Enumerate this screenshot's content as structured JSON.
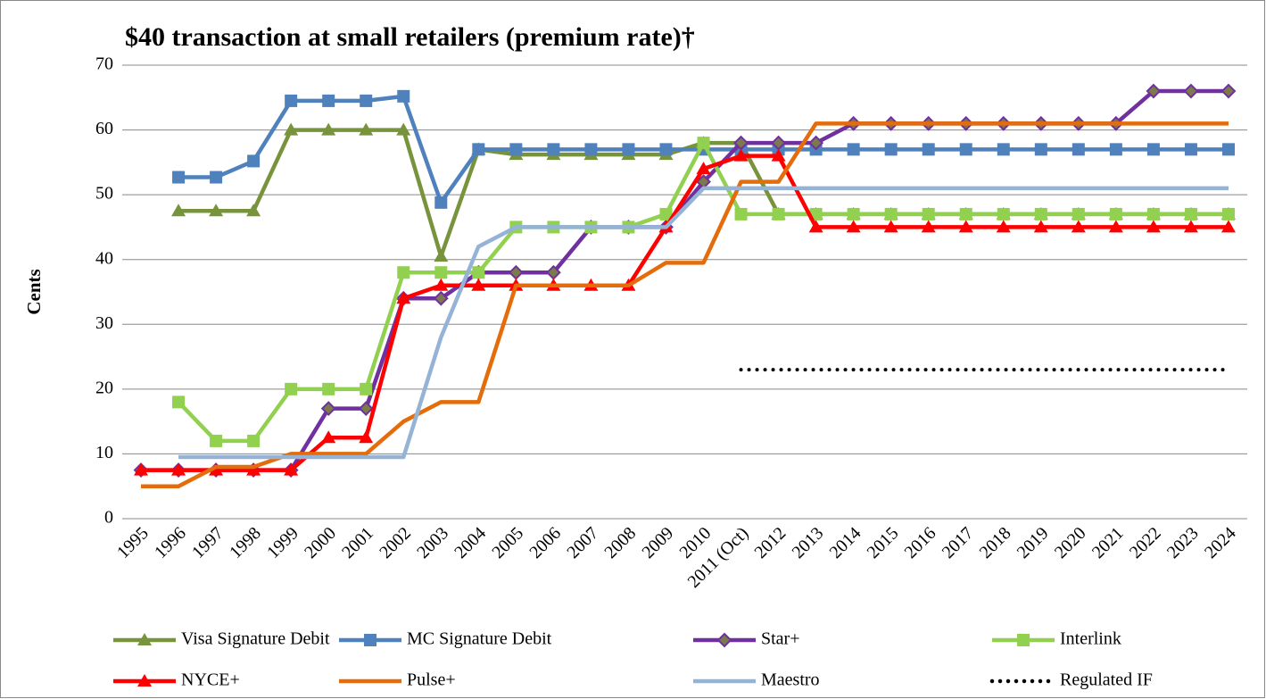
{
  "chart_data": {
    "type": "line",
    "title": "$40 transaction at small retailers (premium rate)†",
    "y_label": "Cents",
    "categories": [
      "1995",
      "1996",
      "1997",
      "1998",
      "1999",
      "2000",
      "2001",
      "2002",
      "2003",
      "2004",
      "2005",
      "2006",
      "2007",
      "2008",
      "2009",
      "2010",
      "2011 (Oct)",
      "2012",
      "2013",
      "2014",
      "2015",
      "2016",
      "2017",
      "2018",
      "2019",
      "2020",
      "2021",
      "2022",
      "2023",
      "2024"
    ],
    "ylim": [
      0,
      70
    ],
    "yticks": [
      0,
      10,
      20,
      30,
      40,
      50,
      60,
      70
    ],
    "grid": true,
    "series": [
      {
        "name": "Visa Signature Debit",
        "color": "#77933c",
        "marker": "triangle",
        "values": [
          null,
          47.5,
          47.5,
          47.5,
          60,
          60,
          60,
          60,
          40.5,
          57,
          56.2,
          56.2,
          56.2,
          56.2,
          56.2,
          58,
          58,
          47,
          47,
          47,
          47,
          47,
          47,
          47,
          47,
          47,
          47,
          47,
          47,
          47
        ]
      },
      {
        "name": "MC Signature Debit",
        "color": "#4f81bd",
        "marker": "square",
        "values": [
          null,
          52.7,
          52.7,
          55.2,
          64.5,
          64.5,
          64.5,
          65.2,
          48.8,
          57,
          57,
          57,
          57,
          57,
          57,
          57,
          57,
          57,
          57,
          57,
          57,
          57,
          57,
          57,
          57,
          57,
          57,
          57,
          57,
          57
        ]
      },
      {
        "name": "Star+",
        "color": "#7030a0",
        "marker": "diamond",
        "marker_color": "#7a7a4a",
        "values": [
          7.5,
          7.5,
          7.5,
          7.5,
          7.5,
          17,
          17,
          34,
          34,
          38,
          38,
          38,
          45,
          45,
          45,
          52,
          58,
          58,
          58,
          61,
          61,
          61,
          61,
          61,
          61,
          61,
          61,
          66,
          66,
          66
        ]
      },
      {
        "name": "Interlink",
        "color": "#92d050",
        "marker": "square",
        "values": [
          null,
          18,
          12,
          12,
          20,
          20,
          20,
          38,
          38,
          38,
          45,
          45,
          45,
          45,
          47,
          58,
          47,
          47,
          47,
          47,
          47,
          47,
          47,
          47,
          47,
          47,
          47,
          47,
          47,
          47
        ]
      },
      {
        "name": "NYCE+",
        "color": "#ff0000",
        "marker": "triangle",
        "values": [
          7.5,
          7.5,
          7.5,
          7.5,
          7.5,
          12.5,
          12.5,
          34,
          36,
          36,
          36,
          36,
          36,
          36,
          45,
          54,
          56,
          56,
          45,
          45,
          45,
          45,
          45,
          45,
          45,
          45,
          45,
          45,
          45,
          45
        ]
      },
      {
        "name": "Pulse+",
        "color": "#e46c0a",
        "marker": "none",
        "values": [
          5,
          5,
          8,
          8,
          10,
          10,
          10,
          15,
          18,
          18,
          36,
          36,
          36,
          36,
          39.5,
          39.5,
          52,
          52,
          61,
          61,
          61,
          61,
          61,
          61,
          61,
          61,
          61,
          61,
          61,
          61
        ]
      },
      {
        "name": "Maestro",
        "color": "#95b3d7",
        "marker": "none",
        "values": [
          null,
          9.5,
          9.5,
          9.5,
          9.5,
          9.5,
          9.5,
          9.5,
          28,
          42,
          45,
          45,
          45,
          45,
          45,
          51,
          51,
          51,
          51,
          51,
          51,
          51,
          51,
          51,
          51,
          51,
          51,
          51,
          51,
          51
        ]
      },
      {
        "name": "Regulated IF",
        "color": "#000000",
        "marker": "none",
        "dash": "dotted",
        "values": [
          null,
          null,
          null,
          null,
          null,
          null,
          null,
          null,
          null,
          null,
          null,
          null,
          null,
          null,
          null,
          null,
          23,
          23,
          23,
          23,
          23,
          23,
          23,
          23,
          23,
          23,
          23,
          23,
          23,
          23
        ]
      }
    ]
  }
}
